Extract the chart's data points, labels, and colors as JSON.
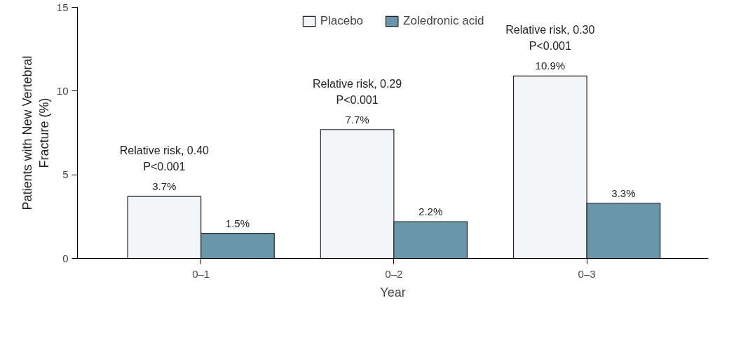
{
  "chart_data": {
    "type": "bar",
    "xlabel": "Year",
    "ylabel": "Patients with New Vertebral\nFracture (%)",
    "categories": [
      "0–1",
      "0–2",
      "0–3"
    ],
    "series": [
      {
        "name": "Placebo",
        "color": "#f2f6f9",
        "values": [
          3.7,
          7.7,
          10.9
        ],
        "value_labels": [
          "3.7%",
          "7.7%",
          "10.9%"
        ]
      },
      {
        "name": "Zoledronic acid",
        "color": "#6897ab",
        "values": [
          1.5,
          2.2,
          3.3
        ],
        "value_labels": [
          "1.5%",
          "2.2%",
          "3.3%"
        ]
      }
    ],
    "ylim": [
      0,
      15
    ],
    "yticks": [
      0,
      5,
      10,
      15
    ],
    "grid": false,
    "legend": "top",
    "annotations": [
      {
        "text": "Relative risk, 0.40\nP<0.001",
        "x": "0–1",
        "y": 3.7
      },
      {
        "text": "Relative risk, 0.29\nP<0.001",
        "x": "0–2",
        "y": 7.7
      },
      {
        "text": "Relative risk, 0.30\nP<0.001",
        "x": "0–3",
        "y": 10.9
      }
    ]
  }
}
